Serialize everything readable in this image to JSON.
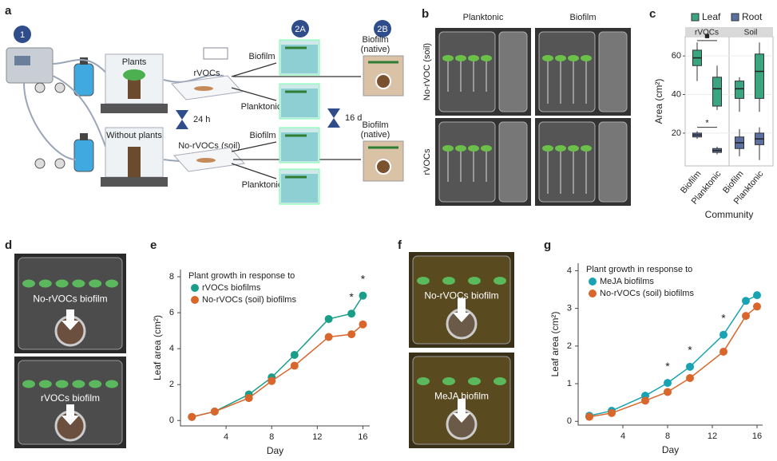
{
  "panel_labels": [
    "a",
    "b",
    "c",
    "d",
    "e",
    "f",
    "g"
  ],
  "diagram": {
    "steps": [
      "1",
      "2A",
      "2B"
    ],
    "chambers": [
      "Plants",
      "Without plants"
    ],
    "volatiles": [
      "rVOCs",
      "No-rVOCs (soil)"
    ],
    "routes": [
      "Biofilm",
      "Planktonic",
      "Biofilm",
      "Planktonic"
    ],
    "native": [
      [
        "Biofilm",
        "(native)"
      ],
      [
        "Biofilm",
        "(native)"
      ]
    ],
    "times": [
      "24 h",
      "16 d"
    ]
  },
  "photos_b": {
    "columns": [
      "Planktonic",
      "Biofilm"
    ],
    "rows": [
      "No-rVOC (soil)",
      "rVOCs"
    ]
  },
  "photos_d": [
    "No-rVOCs biofilm",
    "rVOCs biofilm"
  ],
  "photos_f": [
    "No-rVOCs biofilm",
    "MeJA biofilm"
  ],
  "chart_data": [
    {
      "type": "box",
      "facets": [
        "rVOCs",
        "Soil"
      ],
      "categories": [
        "Biofilm",
        "Planktonic",
        "Biofilm",
        "Planktonic"
      ],
      "x_label": "Community",
      "y_label": "Area (cm²)",
      "ylim": [
        3,
        70
      ],
      "yticks": [
        20,
        40,
        60
      ],
      "series": [
        {
          "name": "Leaf",
          "color": "#3aa57f",
          "boxes": [
            {
              "low": 47,
              "q1": 55,
              "median": 59,
              "q3": 63,
              "high": 67
            },
            {
              "low": 32,
              "q1": 34,
              "median": 43,
              "q3": 49,
              "high": 55
            },
            {
              "low": 31,
              "q1": 38,
              "median": 43,
              "q3": 47,
              "high": 49
            },
            {
              "low": 31,
              "q1": 38,
              "median": 52,
              "q3": 61,
              "high": 67
            }
          ]
        },
        {
          "name": "Root",
          "color": "#5b6fa0",
          "boxes": [
            {
              "low": 17,
              "q1": 18,
              "median": 19,
              "q3": 20,
              "high": 21
            },
            {
              "low": 9,
              "q1": 10,
              "median": 11,
              "q3": 12,
              "high": 13
            },
            {
              "low": 8,
              "q1": 12,
              "median": 15,
              "q3": 18,
              "high": 22
            },
            {
              "low": 6,
              "q1": 14,
              "median": 17,
              "q3": 20,
              "high": 23
            }
          ]
        }
      ],
      "annotations": [
        {
          "text": "*",
          "y": 23
        },
        {
          "text": "■",
          "y": 68
        }
      ]
    },
    {
      "type": "line",
      "legend_title": "Plant growth in response to",
      "x_label": "Day",
      "y_label": "Leaf area (cm²)",
      "x": [
        1,
        3,
        6,
        8,
        10,
        13,
        15,
        16
      ],
      "xlim": [
        0,
        16.6
      ],
      "xticks": [
        4,
        8,
        12,
        16
      ],
      "ylim": [
        -0.3,
        8.4
      ],
      "yticks": [
        0,
        2,
        4,
        6,
        8
      ],
      "series": [
        {
          "name": "rVOCs biofilms",
          "color": "#1a9e8a",
          "values": [
            0.2,
            0.5,
            1.45,
            2.4,
            3.65,
            5.65,
            5.95,
            6.95
          ]
        },
        {
          "name": "No-rVOCs (soil) biofilms",
          "color": "#d9662b",
          "values": [
            0.2,
            0.5,
            1.25,
            2.2,
            3.05,
            4.65,
            4.8,
            5.35
          ]
        }
      ],
      "annotations": [
        {
          "text": "*",
          "x": 15
        },
        {
          "text": "*",
          "x": 16
        }
      ]
    },
    {
      "type": "line",
      "legend_title": "Plant growth in response to",
      "x_label": "Day",
      "y_label": "Leaf area (cm²)",
      "x": [
        1,
        3,
        6,
        8,
        10,
        13,
        15,
        16
      ],
      "xlim": [
        0,
        16.5
      ],
      "xticks": [
        4,
        8,
        12,
        16
      ],
      "ylim": [
        -0.1,
        4.2
      ],
      "yticks": [
        0,
        1,
        2,
        3,
        4
      ],
      "series": [
        {
          "name": "MeJA biofilms",
          "color": "#17a3b4",
          "values": [
            0.15,
            0.28,
            0.68,
            1.02,
            1.45,
            2.3,
            3.2,
            3.35
          ]
        },
        {
          "name": "No-rVOCs (soil) biofilms",
          "color": "#d9662b",
          "values": [
            0.12,
            0.22,
            0.55,
            0.78,
            1.15,
            1.85,
            2.8,
            3.05
          ]
        }
      ],
      "annotations": [
        {
          "text": "*",
          "x": 8
        },
        {
          "text": "*",
          "x": 10
        },
        {
          "text": "*",
          "x": 13
        }
      ]
    }
  ]
}
